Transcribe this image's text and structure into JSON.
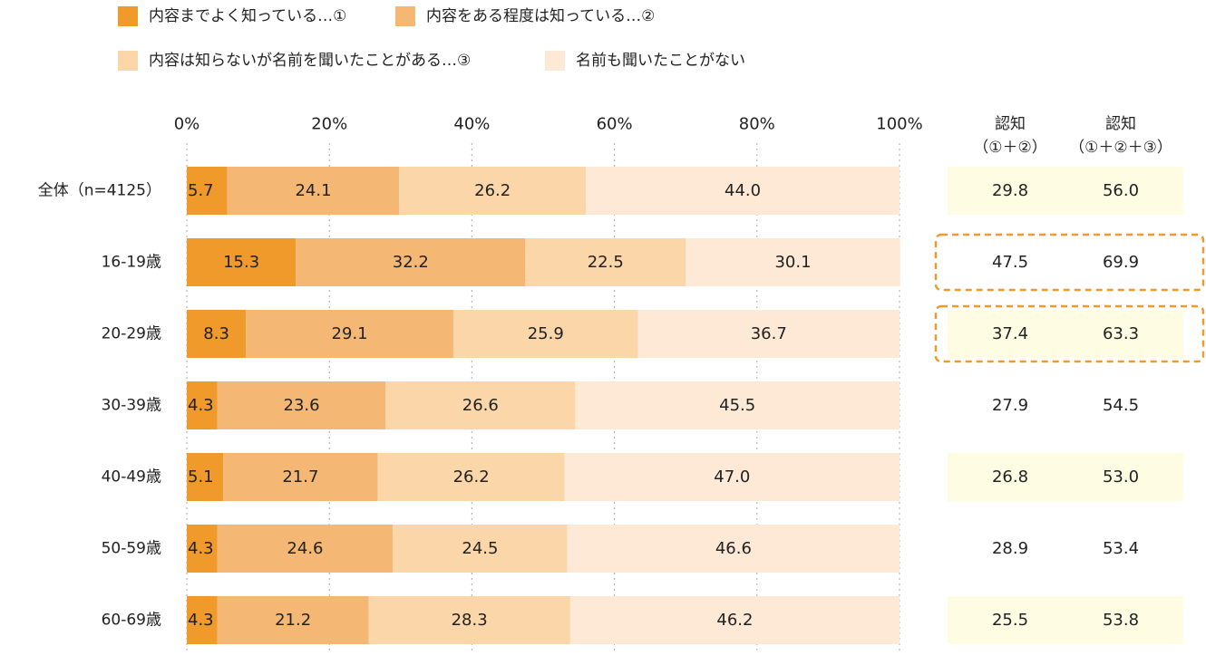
{
  "chart_data": {
    "type": "bar",
    "stacked": true,
    "orientation": "horizontal",
    "title": "",
    "xlabel": "",
    "ylabel": "",
    "xlim": [
      0,
      100
    ],
    "grid": true,
    "x_ticks": [
      "0%",
      "20%",
      "40%",
      "60%",
      "80%",
      "100%"
    ],
    "legend_position": "top",
    "categories": [
      "全体（n=4125）",
      "16-19歳",
      "20-29歳",
      "30-39歳",
      "40-49歳",
      "50-59歳",
      "60-69歳"
    ],
    "series": [
      {
        "name": "内容までよく知っている…①",
        "color": "#f09a2c",
        "values": [
          5.7,
          15.3,
          8.3,
          4.3,
          5.1,
          4.3,
          4.3
        ]
      },
      {
        "name": "内容をある程度は知っている…②",
        "color": "#f5b874",
        "values": [
          24.1,
          32.2,
          29.1,
          23.6,
          21.7,
          24.6,
          21.2
        ]
      },
      {
        "name": "内容は知らないが名前を聞いたことがある…③",
        "color": "#fad6a8",
        "values": [
          26.2,
          22.5,
          25.9,
          26.6,
          26.2,
          24.5,
          28.3
        ]
      },
      {
        "name": "名前も聞いたことがない",
        "color": "#fde9d5",
        "values": [
          44.0,
          30.1,
          36.7,
          45.5,
          47.0,
          46.6,
          46.2
        ]
      }
    ],
    "summary_table": {
      "headers": [
        {
          "line1": "認知",
          "line2": "（①＋②）"
        },
        {
          "line1": "認知",
          "line2": "（①＋②＋③）"
        }
      ],
      "rows": [
        [
          "29.8",
          "56.0"
        ],
        [
          "47.5",
          "69.9"
        ],
        [
          "37.4",
          "63.3"
        ],
        [
          "27.9",
          "54.5"
        ],
        [
          "26.8",
          "53.0"
        ],
        [
          "28.9",
          "53.4"
        ],
        [
          "25.5",
          "53.8"
        ]
      ],
      "row_shading": [
        "yellow",
        "none",
        "yellow",
        "none",
        "yellow",
        "none",
        "yellow"
      ],
      "highlighted_rows_dashed": [
        1,
        2
      ]
    },
    "colors": {
      "table_fill": "#fefde4",
      "highlight_border": "#f09a2c",
      "grid": "#aaaaaa"
    }
  }
}
